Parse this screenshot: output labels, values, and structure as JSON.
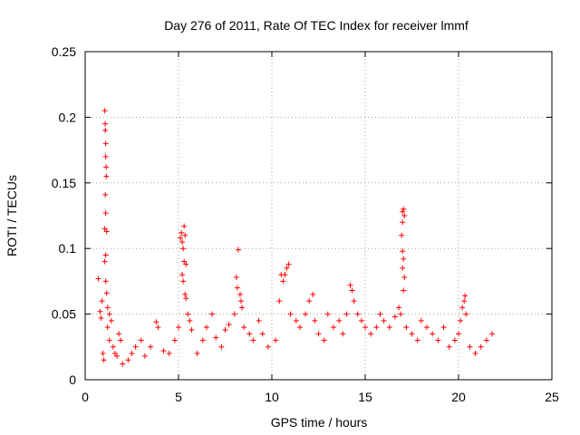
{
  "chart_data": {
    "type": "scatter",
    "title": "Day 276 of 2011, Rate Of TEC Index for receiver lmmf",
    "xlabel": "GPS time / hours",
    "ylabel": "ROTI / TECUs",
    "xlim": [
      0,
      25
    ],
    "ylim": [
      0,
      0.25
    ],
    "xticks": [
      0,
      5,
      10,
      15,
      20,
      25
    ],
    "yticks": [
      0,
      0.05,
      0.1,
      0.15,
      0.2,
      0.25
    ],
    "xtick_labels": [
      "0",
      "5",
      "10",
      "15",
      "20",
      "25"
    ],
    "ytick_labels": [
      "0",
      "0.05",
      "0.1",
      "0.15",
      "0.2",
      "0.25"
    ],
    "grid": true,
    "marker": "plus",
    "series": [
      {
        "color": "#ff0000",
        "points": [
          [
            0.7,
            0.077
          ],
          [
            0.8,
            0.052
          ],
          [
            0.85,
            0.047
          ],
          [
            0.9,
            0.06
          ],
          [
            0.95,
            0.02
          ],
          [
            1.0,
            0.015
          ],
          [
            1.05,
            0.205
          ],
          [
            1.07,
            0.195
          ],
          [
            1.08,
            0.19
          ],
          [
            1.1,
            0.18
          ],
          [
            1.1,
            0.17
          ],
          [
            1.12,
            0.162
          ],
          [
            1.13,
            0.155
          ],
          [
            1.08,
            0.141
          ],
          [
            1.1,
            0.127
          ],
          [
            1.05,
            0.115
          ],
          [
            1.15,
            0.113
          ],
          [
            1.1,
            0.095
          ],
          [
            1.05,
            0.09
          ],
          [
            1.1,
            0.075
          ],
          [
            1.15,
            0.066
          ],
          [
            1.2,
            0.055
          ],
          [
            1.3,
            0.05
          ],
          [
            1.4,
            0.045
          ],
          [
            1.2,
            0.04
          ],
          [
            1.3,
            0.03
          ],
          [
            1.5,
            0.025
          ],
          [
            1.6,
            0.02
          ],
          [
            1.7,
            0.018
          ],
          [
            1.8,
            0.035
          ],
          [
            1.9,
            0.03
          ],
          [
            2.0,
            0.012
          ],
          [
            2.3,
            0.015
          ],
          [
            2.5,
            0.02
          ],
          [
            2.7,
            0.025
          ],
          [
            3.0,
            0.03
          ],
          [
            3.2,
            0.018
          ],
          [
            3.5,
            0.025
          ],
          [
            3.8,
            0.044
          ],
          [
            3.9,
            0.04
          ],
          [
            4.2,
            0.022
          ],
          [
            4.5,
            0.02
          ],
          [
            4.8,
            0.03
          ],
          [
            5.0,
            0.04
          ],
          [
            5.1,
            0.108
          ],
          [
            5.15,
            0.112
          ],
          [
            5.2,
            0.105
          ],
          [
            5.25,
            0.1
          ],
          [
            5.3,
            0.117
          ],
          [
            5.35,
            0.11
          ],
          [
            5.2,
            0.08
          ],
          [
            5.25,
            0.075
          ],
          [
            5.3,
            0.09
          ],
          [
            5.4,
            0.088
          ],
          [
            5.35,
            0.065
          ],
          [
            5.4,
            0.062
          ],
          [
            5.5,
            0.05
          ],
          [
            5.6,
            0.045
          ],
          [
            5.7,
            0.038
          ],
          [
            6.0,
            0.02
          ],
          [
            6.3,
            0.03
          ],
          [
            6.5,
            0.04
          ],
          [
            6.8,
            0.05
          ],
          [
            7.0,
            0.032
          ],
          [
            7.3,
            0.025
          ],
          [
            7.5,
            0.038
          ],
          [
            7.7,
            0.042
          ],
          [
            8.0,
            0.05
          ],
          [
            8.1,
            0.078
          ],
          [
            8.15,
            0.07
          ],
          [
            8.2,
            0.099
          ],
          [
            8.3,
            0.065
          ],
          [
            8.35,
            0.06
          ],
          [
            8.4,
            0.055
          ],
          [
            8.5,
            0.04
          ],
          [
            8.8,
            0.035
          ],
          [
            9.0,
            0.03
          ],
          [
            9.3,
            0.045
          ],
          [
            9.5,
            0.035
          ],
          [
            9.8,
            0.025
          ],
          [
            10.2,
            0.03
          ],
          [
            10.4,
            0.06
          ],
          [
            10.5,
            0.08
          ],
          [
            10.6,
            0.075
          ],
          [
            10.7,
            0.08
          ],
          [
            10.8,
            0.085
          ],
          [
            10.9,
            0.088
          ],
          [
            11.0,
            0.05
          ],
          [
            11.3,
            0.045
          ],
          [
            11.5,
            0.04
          ],
          [
            11.8,
            0.05
          ],
          [
            12.0,
            0.06
          ],
          [
            12.2,
            0.065
          ],
          [
            12.3,
            0.045
          ],
          [
            12.5,
            0.035
          ],
          [
            12.8,
            0.03
          ],
          [
            13.0,
            0.05
          ],
          [
            13.3,
            0.04
          ],
          [
            13.6,
            0.045
          ],
          [
            13.8,
            0.035
          ],
          [
            14.0,
            0.05
          ],
          [
            14.2,
            0.072
          ],
          [
            14.3,
            0.068
          ],
          [
            14.4,
            0.06
          ],
          [
            14.6,
            0.05
          ],
          [
            14.8,
            0.045
          ],
          [
            15.0,
            0.04
          ],
          [
            15.3,
            0.035
          ],
          [
            15.6,
            0.04
          ],
          [
            15.8,
            0.05
          ],
          [
            16.0,
            0.045
          ],
          [
            16.3,
            0.04
          ],
          [
            16.6,
            0.048
          ],
          [
            16.8,
            0.055
          ],
          [
            16.9,
            0.05
          ],
          [
            17.0,
            0.128
          ],
          [
            17.05,
            0.13
          ],
          [
            17.1,
            0.125
          ],
          [
            17.0,
            0.12
          ],
          [
            16.95,
            0.11
          ],
          [
            17.0,
            0.098
          ],
          [
            17.05,
            0.092
          ],
          [
            17.0,
            0.085
          ],
          [
            17.1,
            0.078
          ],
          [
            17.05,
            0.068
          ],
          [
            17.2,
            0.04
          ],
          [
            17.5,
            0.035
          ],
          [
            17.8,
            0.03
          ],
          [
            18.0,
            0.045
          ],
          [
            18.3,
            0.04
          ],
          [
            18.6,
            0.035
          ],
          [
            18.9,
            0.03
          ],
          [
            19.2,
            0.04
          ],
          [
            19.5,
            0.025
          ],
          [
            19.8,
            0.03
          ],
          [
            20.0,
            0.035
          ],
          [
            20.1,
            0.045
          ],
          [
            20.2,
            0.055
          ],
          [
            20.3,
            0.06
          ],
          [
            20.35,
            0.064
          ],
          [
            20.4,
            0.05
          ],
          [
            20.6,
            0.025
          ],
          [
            20.9,
            0.02
          ],
          [
            21.2,
            0.025
          ],
          [
            21.5,
            0.03
          ],
          [
            21.8,
            0.035
          ]
        ]
      }
    ]
  }
}
